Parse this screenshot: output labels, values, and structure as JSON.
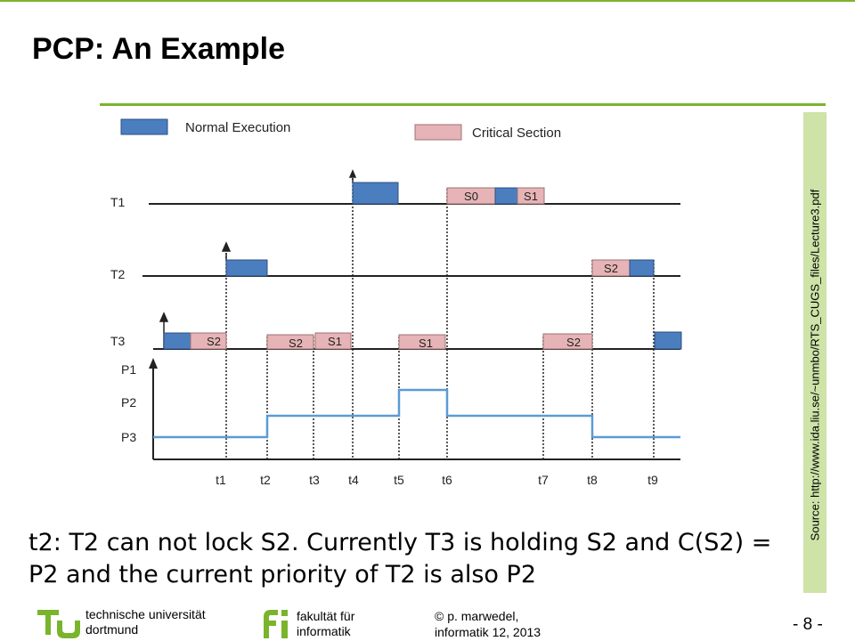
{
  "slide": {
    "title": "PCP: An Example",
    "caption_line1": "t2:  T2 can not lock S2. Currently T3 is holding S2 and C(S2) =",
    "caption_line2": "P2 and the current priority of T2 is also P2",
    "source": "Source: http://www.ida.liu.se/~unmbo/RTS_CUGS_files/Lecture3.pdf",
    "page_number": "- 8 -"
  },
  "footer": {
    "university_line1": "technische universität",
    "university_line2": "dortmund",
    "faculty_line1": "fakultät für",
    "faculty_line2": "informatik",
    "author_line1": "© p. marwedel,",
    "author_line2": "informatik 12,  2013"
  },
  "diagram": {
    "legend": {
      "normal": "Normal Execution",
      "critical": "Critical Section"
    },
    "task_labels": [
      "T1",
      "T2",
      "T3"
    ],
    "priority_labels": [
      "P1",
      "P2",
      "P3"
    ],
    "time_labels": [
      "t1",
      "t2",
      "t3",
      "t4",
      "t5",
      "t6",
      "t7",
      "t8",
      "t9"
    ],
    "semaphore_labels": {
      "t1_s0": "S0",
      "t1_s1": "S1",
      "t2_s2": "S2",
      "t3_s2a": "S2",
      "t3_s2b": "S2",
      "t3_s1a": "S1",
      "t3_s1b": "S1",
      "t3_s2c": "S2"
    },
    "colors": {
      "normal": "#4a7ebf",
      "critical": "#e6b4b6",
      "priority_line": "#5b9bd5",
      "accent": "#7ab42c"
    }
  }
}
